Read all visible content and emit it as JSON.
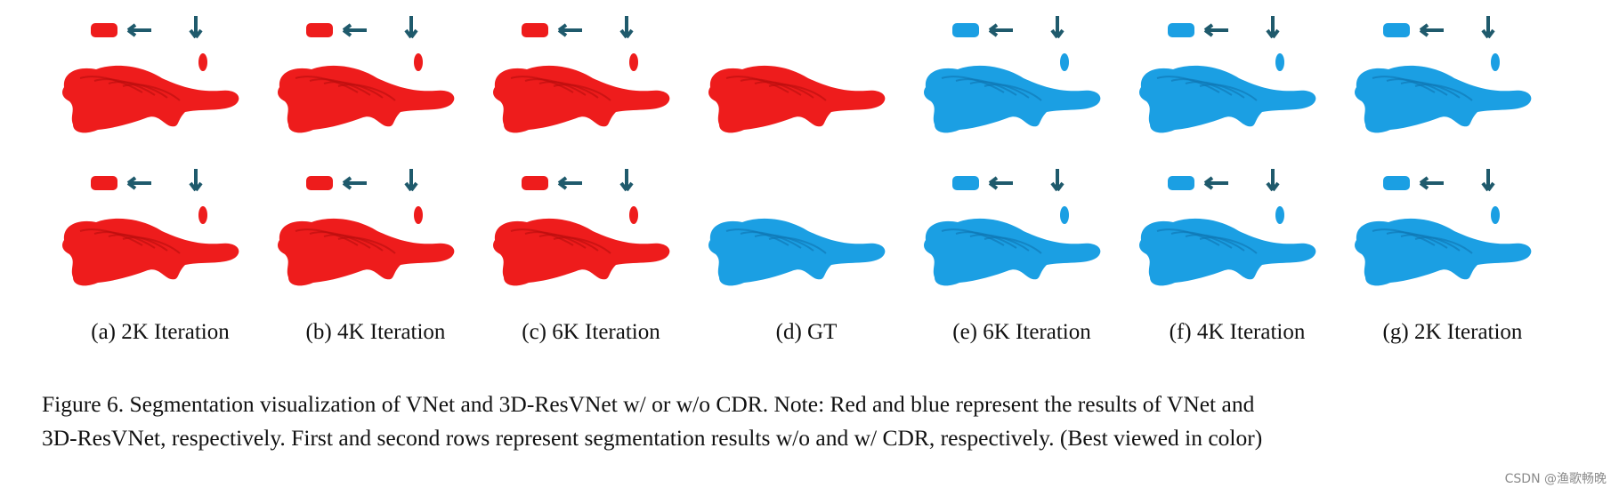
{
  "figure": {
    "colors": {
      "vnet": "#ee1c1c",
      "vnet_dark": "#b80e0e",
      "resvnet": "#1b9fe3",
      "resvnet_dark": "#0f74b0",
      "arrow": "#1f5a6c"
    },
    "panels": [
      {
        "label": "(a) 2K Iteration",
        "row1_color": "red",
        "row2_color": "red"
      },
      {
        "label": "(b) 4K Iteration",
        "row1_color": "red",
        "row2_color": "red"
      },
      {
        "label": "(c) 6K Iteration",
        "row1_color": "red",
        "row2_color": "red"
      },
      {
        "label": "(d) GT",
        "row1_color": "red",
        "row2_color": "blue"
      },
      {
        "label": "(e) 6K Iteration",
        "row1_color": "blue",
        "row2_color": "blue"
      },
      {
        "label": "(f) 4K Iteration",
        "row1_color": "blue",
        "row2_color": "blue"
      },
      {
        "label": "(g) 2K Iteration",
        "row1_color": "blue",
        "row2_color": "blue"
      }
    ],
    "caption_line1": "Figure 6.  Segmentation visualization of VNet and 3D-ResVNet w/ or w/o CDR. Note:  Red and blue represent the results of VNet and",
    "caption_line2": "3D-ResVNet, respectively. First and second rows represent segmentation results w/o and w/ CDR, respectively. (Best viewed in color)"
  },
  "watermark": "CSDN @渔歌畅晚"
}
